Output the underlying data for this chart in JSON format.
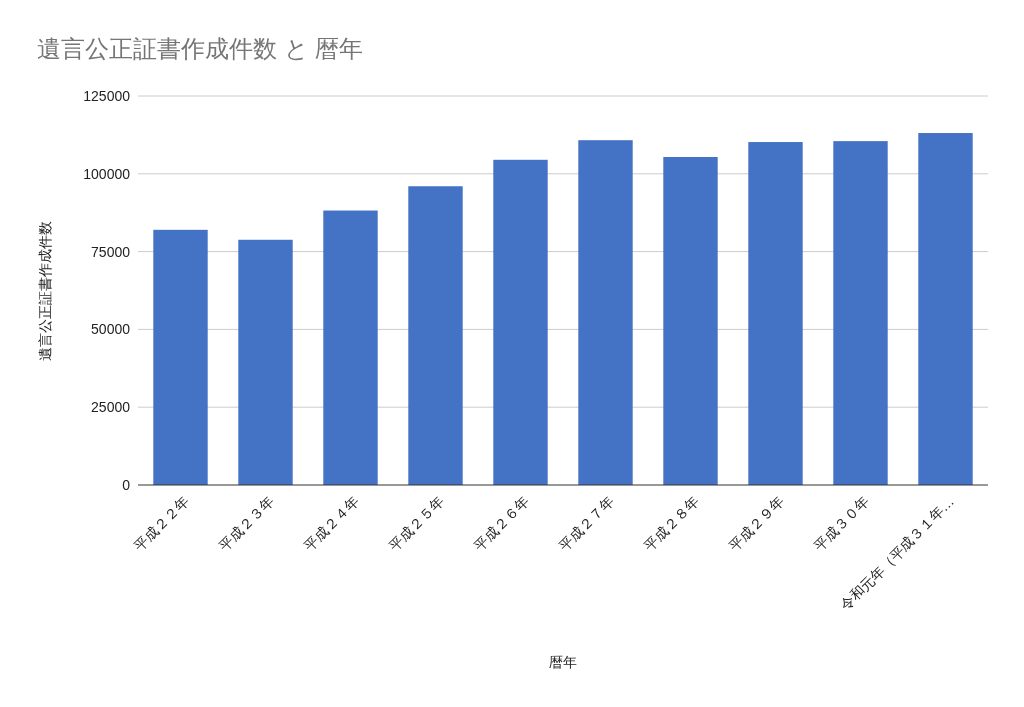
{
  "chart_data": {
    "type": "bar",
    "title": "遺言公正証書作成件数 と 暦年",
    "xlabel": "暦年",
    "ylabel": "遺言公正証書作成件数",
    "categories": [
      "平成２２年",
      "平成２３年",
      "平成２４年",
      "平成２５年",
      "平成２６年",
      "平成２７年",
      "平成２８年",
      "平成２９年",
      "平成３０年",
      "令和元年（平成３１年…"
    ],
    "values": [
      82000,
      78800,
      88200,
      96000,
      104500,
      110800,
      105400,
      110200,
      110500,
      113100
    ],
    "color": "#4472c4",
    "ylim": [
      0,
      125000
    ],
    "yticks": [
      0,
      25000,
      50000,
      75000,
      100000,
      125000
    ],
    "grid": "y"
  }
}
